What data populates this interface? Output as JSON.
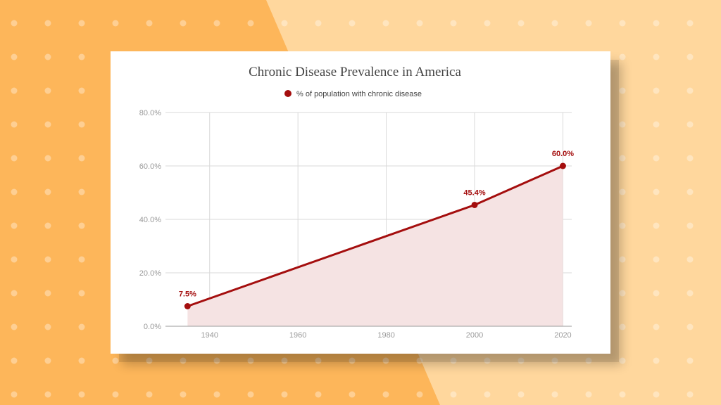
{
  "colors": {
    "background_left": "#FDB65A",
    "background_right": "#FFD79D",
    "dot_color": "#FFFFFF",
    "series": "#A40E0E",
    "fill": "#F5E3E3",
    "grid": "#D9D9D9",
    "axis": "#999999"
  },
  "chart_data": {
    "type": "area",
    "title": "Chronic Disease Prevalence in America",
    "xlabel": "",
    "ylabel": "",
    "legend_position": "top",
    "grid": true,
    "xlim": [
      1930,
      2022
    ],
    "ylim": [
      0,
      80
    ],
    "x_ticks": [
      1940,
      1960,
      1980,
      2000,
      2020
    ],
    "y_ticks": [
      0,
      20,
      40,
      60,
      80
    ],
    "y_tick_labels": [
      "0.0%",
      "20.0%",
      "40.0%",
      "60.0%",
      "80.0%"
    ],
    "series": [
      {
        "name": "% of population with chronic disease",
        "points": [
          {
            "x": 1935,
            "y": 7.5,
            "label": "7.5%"
          },
          {
            "x": 2000,
            "y": 45.4,
            "label": "45.4%"
          },
          {
            "x": 2020,
            "y": 60.0,
            "label": "60.0%"
          }
        ]
      }
    ]
  }
}
